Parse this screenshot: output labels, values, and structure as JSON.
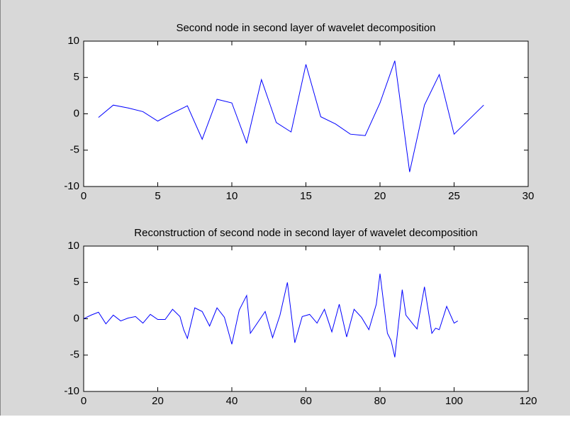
{
  "chart_data": [
    {
      "type": "line",
      "title": "Second node in second layer of wavelet decomposition",
      "x": [
        1,
        2,
        3,
        4,
        5,
        6,
        7,
        8,
        9,
        10,
        11,
        12,
        13,
        14,
        15,
        16,
        17,
        18,
        19,
        20,
        21,
        22,
        23,
        24,
        25,
        26,
        27
      ],
      "values": [
        -0.5,
        1.2,
        0.8,
        0.3,
        -1.0,
        0.1,
        1.1,
        -3.5,
        2.0,
        1.5,
        -4.0,
        4.7,
        -1.2,
        -2.5,
        6.8,
        -0.4,
        -1.4,
        -2.8,
        -3.0,
        1.5,
        7.3,
        -8.0,
        1.2,
        5.4,
        -2.8,
        -0.8,
        1.2
      ],
      "color": "#0000ff",
      "xlim": [
        0,
        30
      ],
      "xticks": [
        0,
        5,
        10,
        15,
        20,
        25,
        30
      ],
      "ylim": [
        -10,
        10
      ],
      "yticks": [
        -10,
        -5,
        0,
        5,
        10
      ]
    },
    {
      "type": "line",
      "title": "Reconstruction of second node in second layer of wavelet decomposition",
      "x": [
        0,
        2,
        4,
        6,
        8,
        10,
        12,
        14,
        16,
        18,
        20,
        22,
        24,
        26,
        27,
        28,
        30,
        32,
        34,
        36,
        38,
        40,
        42,
        44,
        45,
        47,
        49,
        51,
        53,
        55,
        57,
        59,
        61,
        63,
        65,
        67,
        69,
        71,
        73,
        75,
        77,
        79,
        80,
        82,
        83,
        84,
        86,
        87,
        89,
        90,
        92,
        94,
        95,
        96,
        98,
        100,
        101
      ],
      "values": [
        0,
        0.5,
        0.9,
        -0.7,
        0.5,
        -0.3,
        0.1,
        0.3,
        -0.6,
        0.6,
        -0.1,
        -0.1,
        1.3,
        0.3,
        -1.5,
        -2.7,
        1.5,
        1.0,
        -1.0,
        1.5,
        0.2,
        -3.5,
        1.2,
        3.2,
        -2.0,
        -0.5,
        1.0,
        -2.6,
        0.5,
        5.0,
        -3.3,
        0.3,
        0.6,
        -0.6,
        1.3,
        -1.8,
        2.0,
        -2.5,
        1.3,
        0.2,
        -1.5,
        2.0,
        6.2,
        -2.0,
        -3.0,
        -5.3,
        4.0,
        0.5,
        -0.8,
        -1.4,
        4.4,
        -2.0,
        -1.3,
        -1.5,
        1.7,
        -0.6,
        -0.3
      ],
      "color": "#0000ff",
      "xlim": [
        0,
        120
      ],
      "xticks": [
        0,
        20,
        40,
        60,
        80,
        100,
        120
      ],
      "ylim": [
        -10,
        10
      ],
      "yticks": [
        -10,
        -5,
        0,
        5,
        10
      ]
    }
  ]
}
